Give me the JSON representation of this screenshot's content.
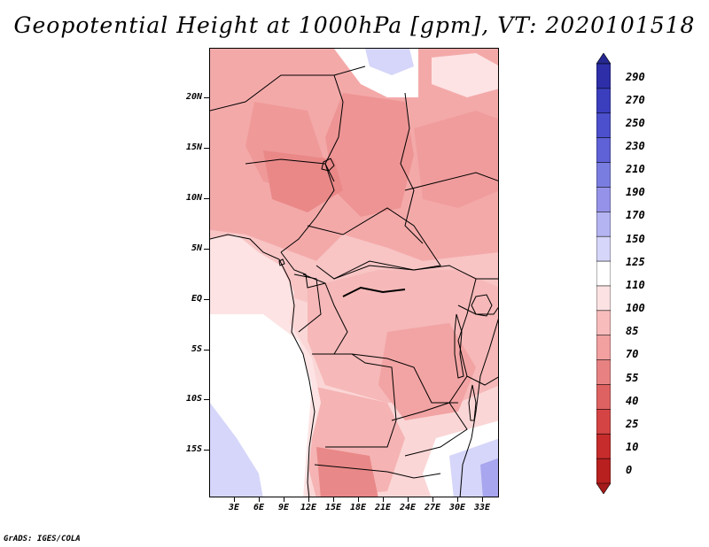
{
  "title": "Geopotential Height at 1000hPa [gpm], VT: 2020101518",
  "y_axis_labels": [
    "20N",
    "15N",
    "10N",
    "5N",
    "EQ",
    "5S",
    "10S",
    "15S"
  ],
  "x_axis_labels": [
    "3E",
    "6E",
    "9E",
    "12E",
    "15E",
    "18E",
    "21E",
    "24E",
    "27E",
    "30E",
    "33E"
  ],
  "colorbar": {
    "levels": [
      "290",
      "270",
      "250",
      "230",
      "210",
      "190",
      "170",
      "150",
      "125",
      "110",
      "100",
      "85",
      "70",
      "55",
      "40",
      "25",
      "10",
      "0"
    ],
    "colors": [
      "#25288f",
      "#2e2fa8",
      "#3b3fbe",
      "#4c50cc",
      "#5f62d6",
      "#7a7de0",
      "#9593e9",
      "#b4b4f2",
      "#d6d6fa",
      "#ffffff",
      "#fce2e2",
      "#f8bcbc",
      "#f2a0a0",
      "#e88282",
      "#df6262",
      "#d54444",
      "#c72c2c",
      "#b82020",
      "#a51a1a"
    ]
  },
  "credit": "GrADS: IGES/COLA"
}
